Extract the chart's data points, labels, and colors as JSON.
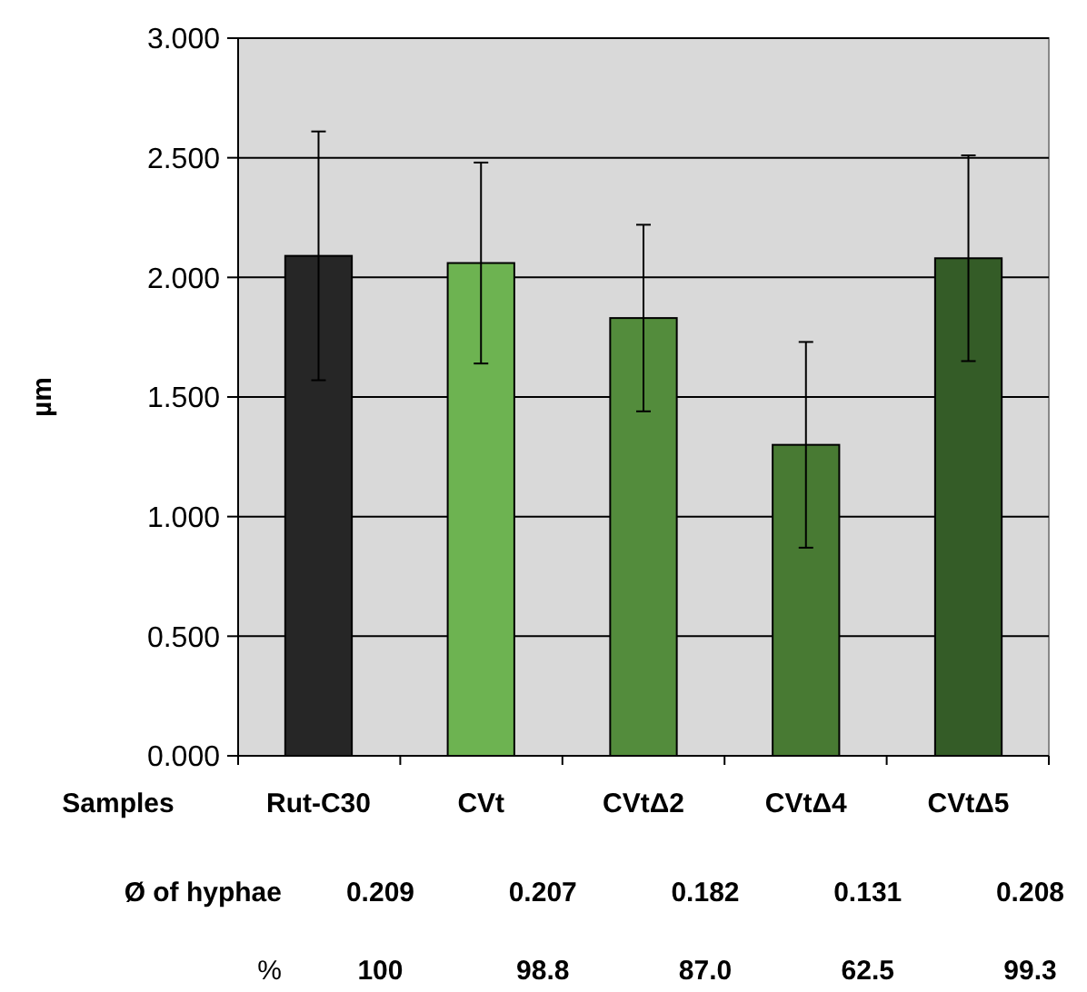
{
  "chart_data": {
    "type": "bar",
    "categories": [
      "Rut-C30",
      "CVt",
      "CVtΔ2",
      "CVtΔ4",
      "CVtΔ5"
    ],
    "values": [
      2.09,
      2.06,
      1.83,
      1.3,
      2.08
    ],
    "errors": [
      0.52,
      0.42,
      0.39,
      0.43,
      0.43
    ],
    "colors": [
      "#262626",
      "#6db351",
      "#538c3c",
      "#487a33",
      "#345c27"
    ],
    "ylabel": "µm",
    "xlabel": "Samples",
    "ylim": [
      0,
      3
    ],
    "yticks": [
      {
        "value": 0,
        "label": "0.000"
      },
      {
        "value": 0.5,
        "label": "0.500"
      },
      {
        "value": 1,
        "label": "1.000"
      },
      {
        "value": 1.5,
        "label": "1.500"
      },
      {
        "value": 2,
        "label": "2.000"
      },
      {
        "value": 2.5,
        "label": "2.500"
      },
      {
        "value": 3,
        "label": "3.000"
      }
    ],
    "grid": "y",
    "annotations": [
      "Ø of hyphae",
      "0.209",
      "0.207",
      "0.182",
      "0.131",
      "0.208",
      "%",
      "100",
      "98.8",
      "87.0",
      "62.5",
      "99.3"
    ]
  }
}
